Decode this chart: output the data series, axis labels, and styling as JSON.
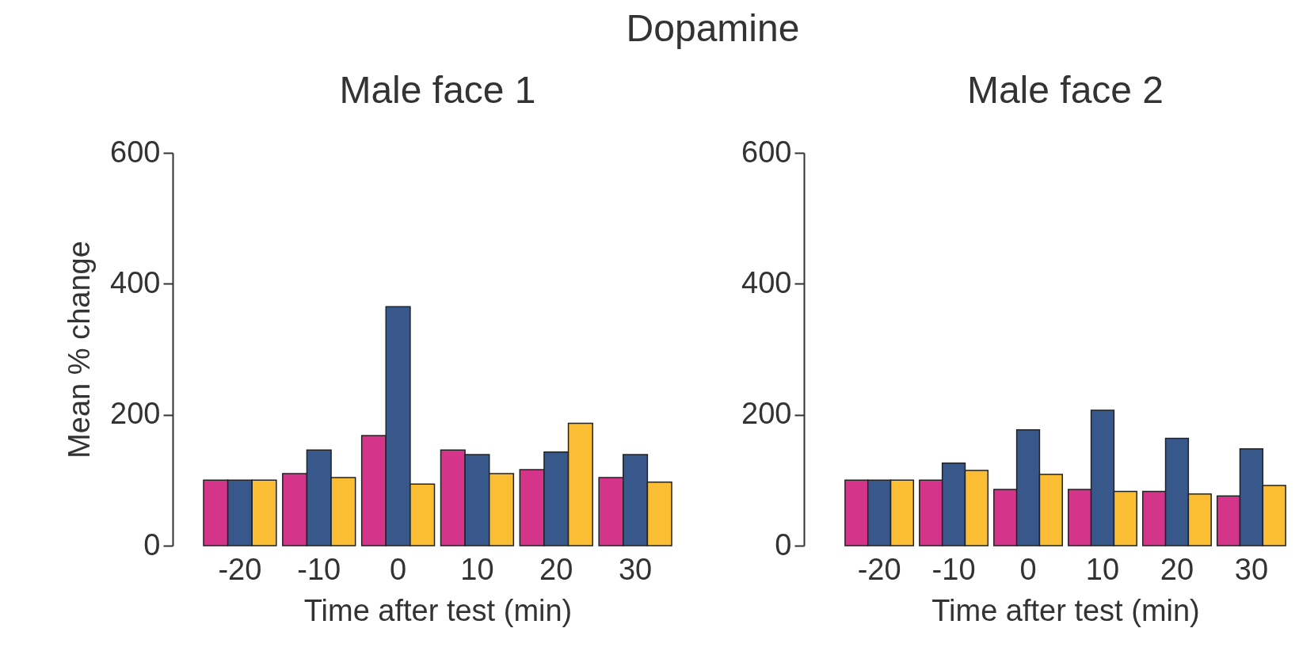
{
  "chart_data": [
    {
      "type": "bar",
      "annotations": [
        "Dopamine"
      ],
      "title": "Male face 1",
      "xlabel": "Time after test (min)",
      "ylabel": "Mean % change",
      "categories": [
        "-20",
        "-10",
        "0",
        "10",
        "20",
        "30"
      ],
      "ylim": [
        0,
        600
      ],
      "yticks": [
        0,
        200,
        400,
        600
      ],
      "series": [
        {
          "color": "#d4358b",
          "values": [
            100,
            110,
            168,
            146,
            116,
            104
          ]
        },
        {
          "color": "#38588c",
          "values": [
            100,
            146,
            365,
            139,
            143,
            139
          ]
        },
        {
          "color": "#fbbd33",
          "values": [
            100,
            104,
            94,
            110,
            187,
            97
          ]
        }
      ]
    },
    {
      "type": "bar",
      "title": "Male face 2",
      "xlabel": "Time after test (min)",
      "categories": [
        "-20",
        "-10",
        "0",
        "10",
        "20",
        "30"
      ],
      "ylim": [
        0,
        600
      ],
      "yticks": [
        0,
        200,
        400,
        600
      ],
      "series": [
        {
          "color": "#d4358b",
          "values": [
            100,
            100,
            86,
            86,
            83,
            76
          ]
        },
        {
          "color": "#38588c",
          "values": [
            100,
            126,
            177,
            207,
            164,
            148
          ]
        },
        {
          "color": "#fbbd33",
          "values": [
            100,
            115,
            109,
            83,
            79,
            92
          ]
        }
      ]
    }
  ]
}
